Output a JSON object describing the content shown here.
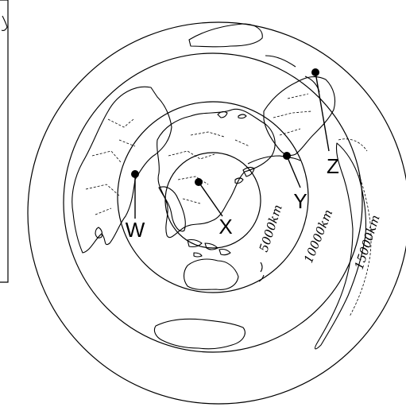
{
  "markers": [
    {
      "label": "W"
    },
    {
      "label": "X"
    },
    {
      "label": "Y"
    },
    {
      "label": "Z"
    }
  ],
  "distance_rings": [
    {
      "label": "5000km"
    },
    {
      "label": "10000km"
    },
    {
      "label": "15000km"
    }
  ]
}
